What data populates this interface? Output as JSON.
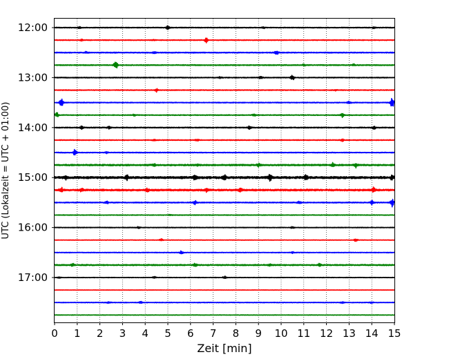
{
  "chart_data": {
    "type": "line",
    "title": "",
    "xlabel": "Zeit  [min]",
    "ylabel": "UTC (Lokalzeit = UTC + 01:00)",
    "xlim": [
      0,
      15
    ],
    "xticks": [
      "0",
      "1",
      "2",
      "3",
      "4",
      "5",
      "6",
      "7",
      "8",
      "9",
      "10",
      "11",
      "12",
      "13",
      "14",
      "15"
    ],
    "yticks": [
      {
        "row": 0,
        "label": "12:00"
      },
      {
        "row": 4,
        "label": "13:00"
      },
      {
        "row": 8,
        "label": "14:00"
      },
      {
        "row": 12,
        "label": "15:00"
      },
      {
        "row": 16,
        "label": "16:00"
      },
      {
        "row": 20,
        "label": "17:00"
      }
    ],
    "grid": "vertical dotted at each minute",
    "trace_colors": [
      "#000000",
      "#ff0000",
      "#0000ff",
      "#008000"
    ],
    "traces": [
      {
        "start": "12:00",
        "noise": 0.6,
        "events": [
          [
            5.0,
            3.0
          ],
          [
            1.1,
            1.2
          ],
          [
            9.2,
            1.5
          ],
          [
            14.1,
            1.2
          ]
        ]
      },
      {
        "start": "12:15",
        "noise": 0.6,
        "events": [
          [
            6.7,
            3.5
          ],
          [
            1.2,
            1.0
          ],
          [
            4.4,
            1.0
          ]
        ]
      },
      {
        "start": "12:30",
        "noise": 0.7,
        "events": [
          [
            9.8,
            3.0
          ],
          [
            1.4,
            1.3
          ],
          [
            4.4,
            1.2
          ]
        ]
      },
      {
        "start": "12:45",
        "noise": 0.7,
        "events": [
          [
            2.7,
            5.5
          ],
          [
            11.0,
            1.3
          ],
          [
            13.2,
            1.3
          ]
        ]
      },
      {
        "start": "13:00",
        "noise": 0.6,
        "events": [
          [
            10.5,
            4.0
          ],
          [
            9.1,
            2.0
          ],
          [
            7.3,
            1.0
          ]
        ]
      },
      {
        "start": "13:15",
        "noise": 0.6,
        "events": [
          [
            4.5,
            2.5
          ],
          [
            12.4,
            1.0
          ]
        ]
      },
      {
        "start": "13:30",
        "noise": 0.6,
        "events": [
          [
            0.3,
            6.0
          ],
          [
            13.0,
            2.5
          ],
          [
            14.9,
            8.0
          ]
        ]
      },
      {
        "start": "13:45",
        "noise": 0.6,
        "events": [
          [
            0.1,
            3.5
          ],
          [
            12.7,
            3.0
          ],
          [
            3.5,
            1.5
          ],
          [
            8.8,
            1.5
          ]
        ]
      },
      {
        "start": "14:00",
        "noise": 0.7,
        "events": [
          [
            1.2,
            2.0
          ],
          [
            8.6,
            2.0
          ],
          [
            14.1,
            2.0
          ],
          [
            2.4,
            1.5
          ]
        ]
      },
      {
        "start": "14:15",
        "noise": 0.6,
        "events": [
          [
            12.7,
            2.5
          ],
          [
            6.3,
            1.5
          ],
          [
            4.4,
            1.0
          ]
        ]
      },
      {
        "start": "14:30",
        "noise": 0.6,
        "events": [
          [
            0.9,
            4.5
          ],
          [
            2.3,
            1.0
          ]
        ]
      },
      {
        "start": "14:45",
        "noise": 1.1,
        "events": [
          [
            13.3,
            4.0
          ],
          [
            12.3,
            3.0
          ],
          [
            4.4,
            2.0
          ],
          [
            9.0,
            1.8
          ],
          [
            6.3,
            1.5
          ]
        ]
      },
      {
        "start": "15:00",
        "noise": 1.6,
        "events": [
          [
            9.5,
            4.5
          ],
          [
            3.2,
            3.0
          ],
          [
            6.2,
            3.0
          ],
          [
            7.5,
            3.5
          ],
          [
            11.1,
            3.0
          ],
          [
            14.9,
            3.0
          ],
          [
            0.5,
            2.5
          ]
        ]
      },
      {
        "start": "15:15",
        "noise": 1.3,
        "events": [
          [
            0.3,
            3.0
          ],
          [
            14.1,
            3.5
          ],
          [
            6.7,
            2.5
          ],
          [
            4.1,
            2.0
          ],
          [
            1.2,
            2.5
          ],
          [
            8.2,
            2.5
          ]
        ]
      },
      {
        "start": "15:30",
        "noise": 0.7,
        "events": [
          [
            14.9,
            6.0
          ],
          [
            14.0,
            3.0
          ],
          [
            6.2,
            2.5
          ],
          [
            2.3,
            2.0
          ],
          [
            10.8,
            1.5
          ]
        ]
      },
      {
        "start": "15:45",
        "noise": 0.5,
        "events": [
          [
            5.1,
            1.0
          ]
        ]
      },
      {
        "start": "16:00",
        "noise": 0.5,
        "events": [
          [
            3.7,
            1.2
          ],
          [
            10.5,
            1.2
          ]
        ]
      },
      {
        "start": "16:15",
        "noise": 0.4,
        "events": [
          [
            4.7,
            2.0
          ],
          [
            13.3,
            2.5
          ]
        ]
      },
      {
        "start": "16:30",
        "noise": 0.5,
        "events": [
          [
            5.6,
            2.5
          ],
          [
            10.5,
            1.0
          ]
        ]
      },
      {
        "start": "16:45",
        "noise": 0.9,
        "events": [
          [
            6.2,
            2.5
          ],
          [
            11.7,
            2.5
          ],
          [
            0.8,
            2.0
          ],
          [
            9.5,
            1.5
          ]
        ]
      },
      {
        "start": "17:00",
        "noise": 0.4,
        "events": [
          [
            7.5,
            2.0
          ],
          [
            4.4,
            1.5
          ],
          [
            0.2,
            1.0
          ]
        ]
      },
      {
        "start": "17:15",
        "noise": 0.3,
        "events": []
      },
      {
        "start": "17:30",
        "noise": 0.5,
        "events": [
          [
            3.8,
            1.5
          ],
          [
            2.4,
            1.5
          ],
          [
            12.7,
            1.2
          ],
          [
            14.0,
            1.2
          ]
        ]
      },
      {
        "start": "17:45",
        "noise": 0.4,
        "events": []
      }
    ]
  }
}
